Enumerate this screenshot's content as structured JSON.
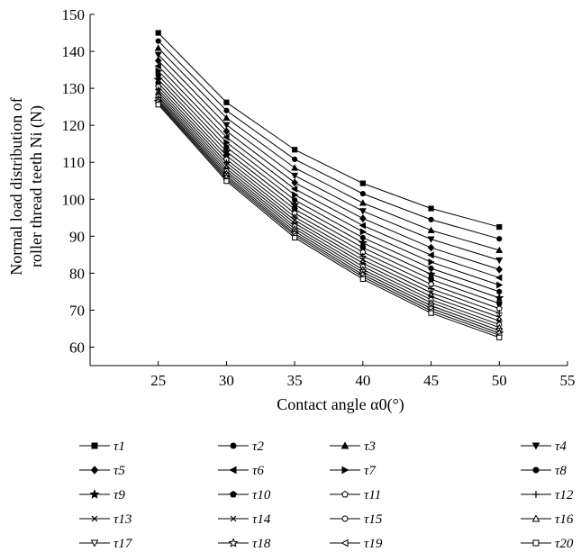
{
  "chart_data": {
    "type": "line",
    "title": "",
    "xlabel": "Contact angle α0(°)",
    "ylabel_line1": "Normal load distribution of",
    "ylabel_line2": "roller thread teeth Ni (N)",
    "xlim": [
      20,
      55
    ],
    "ylim": [
      55,
      150
    ],
    "xticks": [
      25,
      30,
      35,
      40,
      45,
      50,
      55
    ],
    "yticks": [
      60,
      70,
      80,
      90,
      100,
      110,
      120,
      130,
      140,
      150
    ],
    "x": [
      25,
      30,
      35,
      40,
      45,
      50
    ],
    "grid": false,
    "legend_position": "bottom",
    "line_color": "#000000",
    "series": [
      {
        "name": "τ1",
        "marker": "square",
        "values": [
          145.0,
          126.2,
          113.4,
          104.3,
          97.5,
          92.5
        ]
      },
      {
        "name": "τ2",
        "marker": "circle",
        "values": [
          142.8,
          124.0,
          110.8,
          101.5,
          94.5,
          89.3
        ]
      },
      {
        "name": "τ3",
        "marker": "triangle-up",
        "values": [
          140.9,
          122.0,
          108.5,
          99.0,
          91.6,
          86.2
        ]
      },
      {
        "name": "τ4",
        "marker": "triangle-down",
        "values": [
          139.1,
          120.1,
          106.4,
          96.8,
          89.2,
          83.5
        ]
      },
      {
        "name": "τ5",
        "marker": "diamond",
        "values": [
          137.5,
          118.4,
          104.5,
          94.8,
          86.9,
          81.0
        ]
      },
      {
        "name": "τ6",
        "marker": "triangle-left",
        "values": [
          136.0,
          116.8,
          102.8,
          92.9,
          84.9,
          78.8
        ]
      },
      {
        "name": "τ7",
        "marker": "triangle-right",
        "values": [
          134.7,
          115.4,
          101.2,
          91.2,
          83.0,
          76.8
        ]
      },
      {
        "name": "τ8",
        "marker": "circle",
        "values": [
          133.5,
          114.1,
          99.8,
          89.6,
          81.3,
          75.0
        ]
      },
      {
        "name": "τ9",
        "marker": "star",
        "values": [
          132.4,
          112.9,
          98.5,
          88.2,
          79.7,
          73.3
        ]
      },
      {
        "name": "τ10",
        "marker": "pentagon",
        "values": [
          131.4,
          111.8,
          97.3,
          86.9,
          78.3,
          71.8
        ]
      },
      {
        "name": "τ11",
        "marker": "pentagon-open",
        "values": [
          130.5,
          110.8,
          96.2,
          85.7,
          77.0,
          70.4
        ]
      },
      {
        "name": "τ12",
        "marker": "plus",
        "values": [
          129.7,
          109.9,
          95.2,
          84.6,
          75.8,
          69.2
        ]
      },
      {
        "name": "τ13",
        "marker": "cross",
        "values": [
          129.0,
          109.1,
          94.3,
          83.6,
          74.7,
          68.1
        ]
      },
      {
        "name": "τ14",
        "marker": "asterisk",
        "values": [
          128.4,
          108.3,
          93.5,
          82.7,
          73.7,
          67.1
        ]
      },
      {
        "name": "τ15",
        "marker": "circle-open",
        "values": [
          127.8,
          107.6,
          92.7,
          81.8,
          72.8,
          66.1
        ]
      },
      {
        "name": "τ16",
        "marker": "triangle-up-open",
        "values": [
          127.3,
          107.0,
          92.0,
          81.0,
          72.0,
          65.3
        ]
      },
      {
        "name": "τ17",
        "marker": "triangle-down-open",
        "values": [
          126.8,
          106.4,
          91.3,
          80.3,
          71.2,
          64.5
        ]
      },
      {
        "name": "τ18",
        "marker": "star-open",
        "values": [
          126.4,
          105.9,
          90.7,
          79.6,
          70.5,
          63.8
        ]
      },
      {
        "name": "τ19",
        "marker": "triangle-left-open",
        "values": [
          126.0,
          105.4,
          90.2,
          79.0,
          69.8,
          63.2
        ]
      },
      {
        "name": "τ20",
        "marker": "square-open",
        "values": [
          125.6,
          104.9,
          89.6,
          78.4,
          69.2,
          62.6
        ]
      }
    ]
  }
}
